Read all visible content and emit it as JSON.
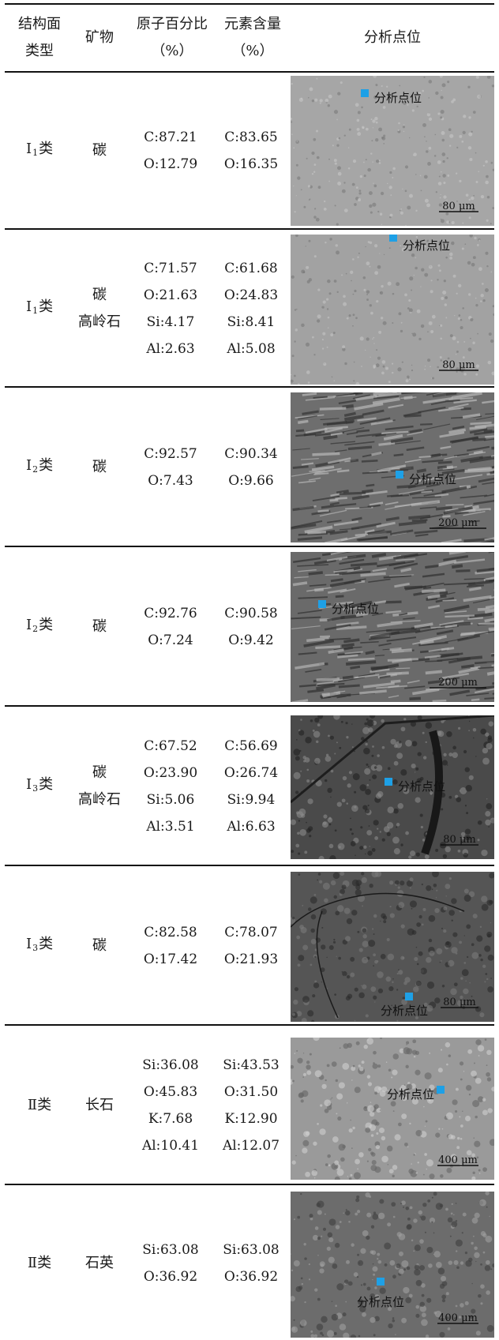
{
  "header": {
    "col1_line1": "结构面",
    "col1_line2": "类型",
    "col2": "矿物",
    "col3_line1": "原子百分比",
    "col3_line2": "（%）",
    "col4_line1": "元素含量",
    "col4_line2": "（%）",
    "col5": "分析点位"
  },
  "rows": [
    {
      "type_main": "Ⅰ",
      "type_sub": "1",
      "type_suffix": "类",
      "minerals": [
        "碳"
      ],
      "atomic": [
        "C:87.21",
        "O:12.79"
      ],
      "element": [
        "C:83.65",
        "O:16.35"
      ],
      "point_label": "分析点位",
      "scale": "80 μm"
    },
    {
      "type_main": "Ⅰ",
      "type_sub": "1",
      "type_suffix": "类",
      "minerals": [
        "碳",
        "高岭石"
      ],
      "atomic": [
        "C:71.57",
        "O:21.63",
        "Si:4.17",
        "Al:2.63"
      ],
      "element": [
        "C:61.68",
        "O:24.83",
        "Si:8.41",
        "Al:5.08"
      ],
      "point_label": "分析点位",
      "scale": "80 μm"
    },
    {
      "type_main": "Ⅰ",
      "type_sub": "2",
      "type_suffix": "类",
      "minerals": [
        "碳"
      ],
      "atomic": [
        "C:92.57",
        "O:7.43"
      ],
      "element": [
        "C:90.34",
        "O:9.66"
      ],
      "point_label": "分析点位",
      "scale": "200 μm"
    },
    {
      "type_main": "Ⅰ",
      "type_sub": "2",
      "type_suffix": "类",
      "minerals": [
        "碳"
      ],
      "atomic": [
        "C:92.76",
        "O:7.24"
      ],
      "element": [
        "C:90.58",
        "O:9.42"
      ],
      "point_label": "分析点位",
      "scale": "200 μm"
    },
    {
      "type_main": "Ⅰ",
      "type_sub": "3",
      "type_suffix": "类",
      "minerals": [
        "碳",
        "高岭石"
      ],
      "atomic": [
        "C:67.52",
        "O:23.90",
        "Si:5.06",
        "Al:3.51"
      ],
      "element": [
        "C:56.69",
        "O:26.74",
        "Si:9.94",
        "Al:6.63"
      ],
      "point_label": "分析点位",
      "scale": "80 μm"
    },
    {
      "type_main": "Ⅰ",
      "type_sub": "3",
      "type_suffix": "类",
      "minerals": [
        "碳"
      ],
      "atomic": [
        "C:82.58",
        "O:17.42"
      ],
      "element": [
        "C:78.07",
        "O:21.93"
      ],
      "point_label": "分析点位",
      "scale": "80 μm"
    },
    {
      "type_main": "Ⅱ",
      "type_sub": "",
      "type_suffix": "类",
      "minerals": [
        "长石"
      ],
      "atomic": [
        "Si:36.08",
        "O:45.83",
        "K:7.68",
        "Al:10.41"
      ],
      "element": [
        "Si:43.53",
        "O:31.50",
        "K:12.90",
        "Al:12.07"
      ],
      "point_label": "分析点位",
      "scale": "400 μm"
    },
    {
      "type_main": "Ⅱ",
      "type_sub": "",
      "type_suffix": "类",
      "minerals": [
        "石英"
      ],
      "atomic": [
        "Si:63.08",
        "O:36.92"
      ],
      "element": [
        "Si:63.08",
        "O:36.92"
      ],
      "point_label": "分析点位",
      "scale": "400 μm"
    }
  ],
  "colors": {
    "marker": "#1ea0e6",
    "rule": "#111111"
  }
}
